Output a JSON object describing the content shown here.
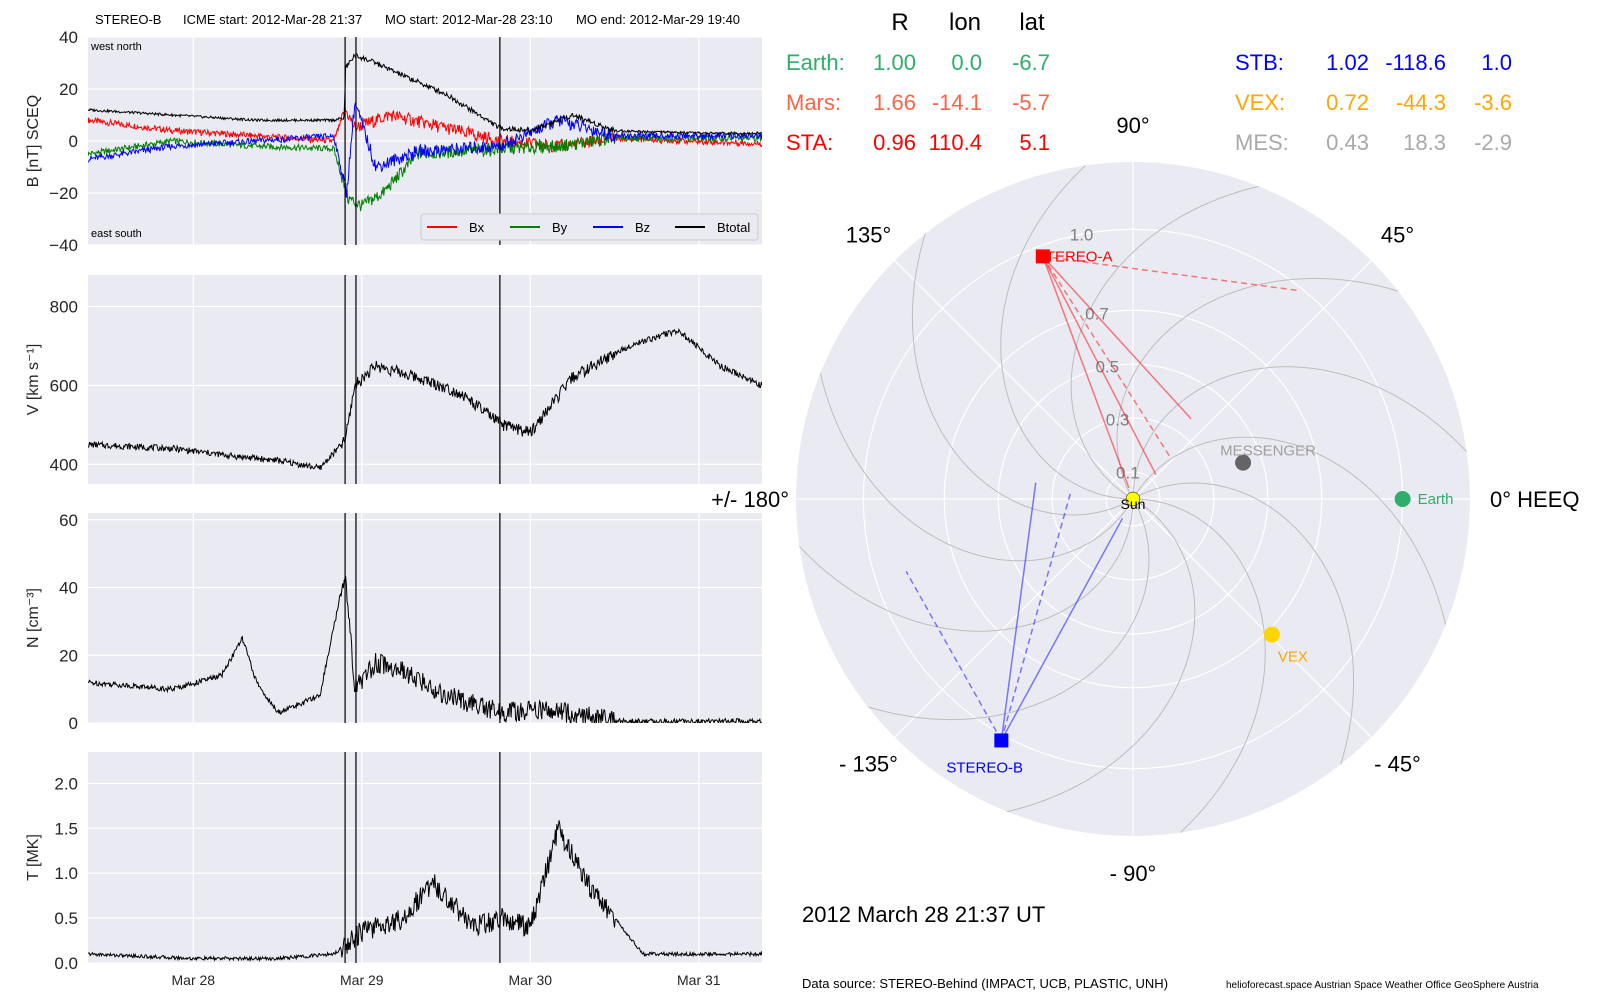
{
  "header": {
    "spacecraft": "STEREO-B",
    "icme_start": "ICME start: 2012-Mar-28 21:37",
    "mo_start": "MO start: 2012-Mar-28 23:10",
    "mo_end": "MO end: 2012-Mar-29 19:40"
  },
  "timeseries": {
    "time_range": [
      "2012-03-27T09:00",
      "2012-03-31T09:00"
    ],
    "x_ticks": [
      {
        "t": "2012-03-28T00:00",
        "label": "Mar 28"
      },
      {
        "t": "2012-03-29T00:00",
        "label": "Mar 29"
      },
      {
        "t": "2012-03-30T00:00",
        "label": "Mar 30"
      },
      {
        "t": "2012-03-31T00:00",
        "label": "Mar 31"
      }
    ],
    "event_lines": [
      "2012-03-28T21:37",
      "2012-03-28T23:10",
      "2012-03-29T19:40"
    ],
    "colors": {
      "Bx": "#ff0000",
      "By": "#008000",
      "Bz": "#0000ff",
      "Btotal": "#000000"
    }
  },
  "chart_data": [
    {
      "type": "line",
      "ylabel": "B [nT] SCEQ",
      "ylim": [
        -40,
        40
      ],
      "yticks": [
        "40",
        "20",
        "0",
        "−20",
        "−40"
      ],
      "annotations": {
        "top": "west    north",
        "bottom": "east    south"
      },
      "legend": [
        "Bx",
        "By",
        "Bz",
        "Btotal"
      ],
      "legend_position": "lower-right",
      "series": [
        {
          "name": "Btotal",
          "x": [
            "03-27 09:00",
            "03-27 21:00",
            "03-28 09:00",
            "03-28 20:00",
            "03-28 21:30",
            "03-28 21:40",
            "03-28 23:00",
            "03-29 02:00",
            "03-29 06:00",
            "03-29 12:00",
            "03-29 19:40",
            "03-30 00:00",
            "03-30 06:00",
            "03-30 12:00",
            "03-31 00:00",
            "03-31 09:00"
          ],
          "y": [
            12,
            10,
            8,
            8,
            9,
            28,
            33,
            30,
            25,
            18,
            5,
            4,
            10,
            4,
            3,
            3
          ]
        },
        {
          "name": "Bx",
          "x": [
            "03-27 09:00",
            "03-27 21:00",
            "03-28 09:00",
            "03-28 20:00",
            "03-28 21:40",
            "03-28 23:00",
            "03-29 04:00",
            "03-29 12:00",
            "03-29 19:40",
            "03-30 04:00",
            "03-30 12:00",
            "03-31 09:00"
          ],
          "y": [
            8,
            4,
            2,
            0,
            12,
            5,
            10,
            5,
            0,
            -2,
            1,
            -1
          ]
        },
        {
          "name": "By",
          "x": [
            "03-27 09:00",
            "03-27 21:00",
            "03-28 09:00",
            "03-28 20:00",
            "03-28 22:00",
            "03-29 00:00",
            "03-29 03:00",
            "03-29 08:00",
            "03-29 19:40",
            "03-30 04:00",
            "03-30 12:00",
            "03-31 09:00"
          ],
          "y": [
            -5,
            0,
            -2,
            -3,
            -22,
            -25,
            -20,
            -5,
            -3,
            -2,
            1,
            1
          ]
        },
        {
          "name": "Bz",
          "x": [
            "03-27 09:00",
            "03-27 21:00",
            "03-28 09:00",
            "03-28 20:00",
            "03-28 21:50",
            "03-28 23:00",
            "03-29 02:00",
            "03-29 08:00",
            "03-29 19:40",
            "03-30 04:00",
            "03-30 12:00",
            "03-31 09:00"
          ],
          "y": [
            -7,
            -2,
            0,
            2,
            -20,
            15,
            -10,
            -4,
            -2,
            8,
            2,
            2
          ]
        }
      ]
    },
    {
      "type": "line",
      "ylabel": "V [km s⁻¹]",
      "ylim": [
        350,
        880
      ],
      "yticks": [
        "800",
        "600",
        "400"
      ],
      "series": [
        {
          "name": "",
          "x": [
            "03-27 09:00",
            "03-27 21:00",
            "03-28 06:00",
            "03-28 12:00",
            "03-28 18:00",
            "03-28 21:37",
            "03-28 23:00",
            "03-29 02:00",
            "03-29 08:00",
            "03-29 14:00",
            "03-29 20:00",
            "03-30 00:00",
            "03-30 06:00",
            "03-30 14:00",
            "03-30 21:00",
            "03-31 03:00",
            "03-31 09:00"
          ],
          "y": [
            450,
            440,
            420,
            410,
            390,
            460,
            600,
            650,
            620,
            580,
            500,
            480,
            620,
            700,
            740,
            650,
            600
          ]
        }
      ]
    },
    {
      "type": "line",
      "ylabel": "N [cm⁻³]",
      "ylim": [
        0,
        62
      ],
      "yticks": [
        "60",
        "40",
        "20",
        "0"
      ],
      "series": [
        {
          "name": "",
          "x": [
            "03-27 09:00",
            "03-27 21:00",
            "03-28 04:00",
            "03-28 07:00",
            "03-28 09:00",
            "03-28 12:00",
            "03-28 18:00",
            "03-28 21:40",
            "03-28 23:00",
            "03-29 02:00",
            "03-29 06:00",
            "03-29 12:00",
            "03-29 20:00",
            "03-30 02:00",
            "03-30 08:00",
            "03-30 12:00",
            "03-31 09:00"
          ],
          "y": [
            12,
            10,
            14,
            25,
            12,
            3,
            8,
            45,
            10,
            18,
            15,
            8,
            3,
            4,
            2,
            0.5,
            0.5
          ]
        }
      ]
    },
    {
      "type": "line",
      "ylabel": "T [MK]",
      "ylim": [
        0,
        2.35
      ],
      "yticks": [
        "2.0",
        "1.5",
        "1.0",
        "0.5",
        "0.0"
      ],
      "series": [
        {
          "name": "",
          "x": [
            "03-27 09:00",
            "03-28 00:00",
            "03-28 12:00",
            "03-28 20:00",
            "03-29 00:00",
            "03-29 06:00",
            "03-29 10:00",
            "03-29 16:00",
            "03-29 20:00",
            "03-30 00:00",
            "03-30 04:00",
            "03-30 08:00",
            "03-30 12:00",
            "03-30 16:00",
            "03-31 09:00"
          ],
          "y": [
            0.1,
            0.05,
            0.05,
            0.1,
            0.35,
            0.5,
            0.9,
            0.4,
            0.5,
            0.4,
            1.5,
            0.9,
            0.5,
            0.1,
            0.1
          ]
        }
      ]
    }
  ],
  "polar": {
    "rlabels": [
      {
        "r": 0.1,
        "label": "0.1"
      },
      {
        "r": 0.3,
        "label": "0.3"
      },
      {
        "r": 0.5,
        "label": "0.5"
      },
      {
        "r": 0.7,
        "label": "0.7"
      },
      {
        "r": 1.0,
        "label": "1.0"
      }
    ],
    "angle_labels": [
      {
        "deg": 0,
        "label": "0° HEEQ"
      },
      {
        "deg": 45,
        "label": "45°"
      },
      {
        "deg": 90,
        "label": "90°"
      },
      {
        "deg": 135,
        "label": "135°"
      },
      {
        "deg": 180,
        "label": "+/- 180°"
      },
      {
        "deg": -135,
        "label": "- 135°"
      },
      {
        "deg": -90,
        "label": "- 90°"
      },
      {
        "deg": -45,
        "label": "- 45°"
      }
    ],
    "bodies": [
      {
        "name": "Sun",
        "label": "Sun",
        "r": 0,
        "lon": 0,
        "color": "#ffff00",
        "shape": "circle",
        "label_color": "#000000"
      },
      {
        "name": "Earth",
        "label": "Earth",
        "r": 1.0,
        "lon": 0.0,
        "color": "#2eae6a",
        "shape": "circle",
        "label_color": "#2eae6a"
      },
      {
        "name": "STEREO-A",
        "label": "STEREO-A",
        "r": 0.96,
        "lon": 110.4,
        "color": "#ff0000",
        "shape": "square",
        "label_color": "#ff0000"
      },
      {
        "name": "STEREO-B",
        "label": "STEREO-B",
        "r": 1.02,
        "lon": -118.6,
        "color": "#0000ff",
        "shape": "square",
        "label_color": "#0000ff"
      },
      {
        "name": "VEX",
        "label": "VEX",
        "r": 0.72,
        "lon": -44.3,
        "color": "#ffd500",
        "shape": "circle",
        "label_color": "#ffa500"
      },
      {
        "name": "MES",
        "label": "MESSENGER",
        "r": 0.43,
        "lon": 18.3,
        "color": "#646464",
        "shape": "circle",
        "label_color": "#a0a0a0"
      }
    ],
    "rmax": 1.25,
    "date_label": "2012 March 28  21:37 UT"
  },
  "position_table": {
    "headers": [
      "R",
      "lon",
      "lat"
    ],
    "rows_left": [
      {
        "name": "Earth:",
        "r": "1.00",
        "lon": "0.0",
        "lat": "-6.7",
        "color": "#2eae6a"
      },
      {
        "name": "Mars:",
        "r": "1.66",
        "lon": "-14.1",
        "lat": "-5.7",
        "color": "#ff6347"
      },
      {
        "name": "STA:",
        "r": "0.96",
        "lon": "110.4",
        "lat": "5.1",
        "color": "#ff0000"
      }
    ],
    "rows_right": [
      {
        "name": "STB:",
        "r": "1.02",
        "lon": "-118.6",
        "lat": "1.0",
        "color": "#0000ff"
      },
      {
        "name": "VEX:",
        "r": "0.72",
        "lon": "-44.3",
        "lat": "-3.6",
        "color": "#ffa500"
      },
      {
        "name": "MES:",
        "r": "0.43",
        "lon": "18.3",
        "lat": "-2.9",
        "color": "#a9a9a9"
      }
    ]
  },
  "footer": {
    "source": "Data source: STEREO-Behind (IMPACT, UCB, PLASTIC, UNH)",
    "credits": "helioforecast.space   Austrian Space Weather Office   GeoSphere Austria"
  }
}
